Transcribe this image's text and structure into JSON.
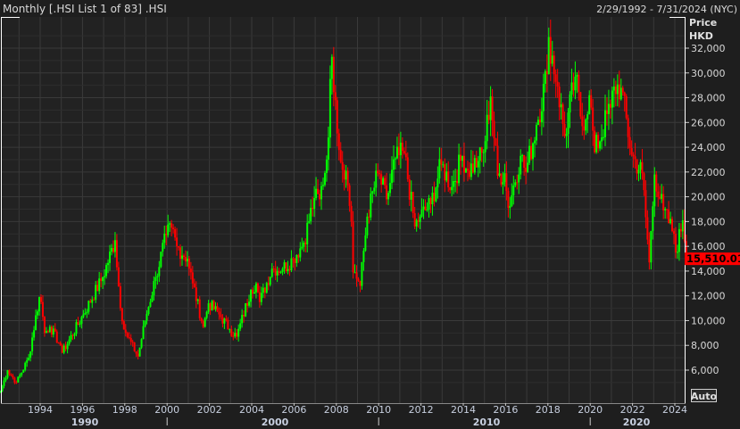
{
  "header": {
    "title": "Monthly [.HSI List 1 of 83] .HSI",
    "date_range": "2/29/1992 - 7/31/2024 (NYC)"
  },
  "axis": {
    "price_label": "Price",
    "currency_label": "HKD",
    "auto_button": "Auto",
    "last_price": "15,510.01"
  },
  "colors": {
    "up": "#00ff00",
    "down": "#ff0000",
    "background": "#1e1e1e",
    "plot": "#222222",
    "grid": "#3a3a3a",
    "last_price_tag": "#ff0000"
  },
  "chart_data": {
    "type": "candlestick",
    "interval": "monthly",
    "ylim": [
      4000,
      34000
    ],
    "y_ticks": [
      "6,000",
      "8,000",
      "10,000",
      "12,000",
      "14,000",
      "16,000",
      "18,000",
      "20,000",
      "22,000",
      "24,000",
      "26,000",
      "28,000",
      "30,000",
      "32,000"
    ],
    "y_tick_values": [
      6000,
      8000,
      10000,
      12000,
      14000,
      16000,
      18000,
      20000,
      22000,
      24000,
      26000,
      28000,
      30000,
      32000
    ],
    "x_ticks": [
      "1994",
      "1996",
      "1998",
      "2000",
      "2002",
      "2004",
      "2006",
      "2008",
      "2010",
      "2012",
      "2014",
      "2016",
      "2018",
      "2020",
      "2022",
      "2024"
    ],
    "x_decades": [
      "1990",
      "2000",
      "2010",
      "2020"
    ],
    "grid": true,
    "approx_closes": [
      [
        "1992-02",
        4300
      ],
      [
        "1992-06",
        6000
      ],
      [
        "1992-11",
        5000
      ],
      [
        "1993-06",
        7000
      ],
      [
        "1993-12",
        11900
      ],
      [
        "1994-01",
        11500
      ],
      [
        "1994-03",
        9000
      ],
      [
        "1994-06",
        9500
      ],
      [
        "1994-12",
        8000
      ],
      [
        "1995-01",
        7400
      ],
      [
        "1996-01",
        10500
      ],
      [
        "1996-12",
        13500
      ],
      [
        "1997-07",
        16500
      ],
      [
        "1997-10",
        11000
      ],
      [
        "1998-01",
        9000
      ],
      [
        "1998-08",
        7100
      ],
      [
        "1998-12",
        10000
      ],
      [
        "1999-06",
        13500
      ],
      [
        "1999-12",
        16900
      ],
      [
        "2000-03",
        17500
      ],
      [
        "2000-06",
        16000
      ],
      [
        "2000-12",
        15000
      ],
      [
        "2001-03",
        13000
      ],
      [
        "2001-09",
        9500
      ],
      [
        "2001-12",
        11400
      ],
      [
        "2002-06",
        10500
      ],
      [
        "2002-12",
        9300
      ],
      [
        "2003-04",
        8700
      ],
      [
        "2003-12",
        12500
      ],
      [
        "2004-03",
        13000
      ],
      [
        "2004-05",
        11500
      ],
      [
        "2004-12",
        14200
      ],
      [
        "2005-06",
        14200
      ],
      [
        "2005-12",
        15000
      ],
      [
        "2006-06",
        16300
      ],
      [
        "2006-12",
        19900
      ],
      [
        "2007-03",
        19800
      ],
      [
        "2007-07",
        23000
      ],
      [
        "2007-10",
        31300
      ],
      [
        "2007-12",
        27800
      ],
      [
        "2008-03",
        22800
      ],
      [
        "2008-06",
        22100
      ],
      [
        "2008-09",
        18000
      ],
      [
        "2008-10",
        13900
      ],
      [
        "2008-11",
        13900
      ],
      [
        "2009-02",
        12800
      ],
      [
        "2009-06",
        18400
      ],
      [
        "2009-12",
        21900
      ],
      [
        "2010-05",
        19800
      ],
      [
        "2010-10",
        23100
      ],
      [
        "2011-03",
        23500
      ],
      [
        "2011-09",
        17600
      ],
      [
        "2011-12",
        18400
      ],
      [
        "2012-06",
        19400
      ],
      [
        "2012-12",
        22600
      ],
      [
        "2013-06",
        20800
      ],
      [
        "2013-12",
        23300
      ],
      [
        "2014-03",
        22100
      ],
      [
        "2014-09",
        22900
      ],
      [
        "2014-12",
        23600
      ],
      [
        "2015-04",
        28100
      ],
      [
        "2015-08",
        21700
      ],
      [
        "2015-12",
        21900
      ],
      [
        "2016-02",
        19100
      ],
      [
        "2016-09",
        23300
      ],
      [
        "2016-12",
        22000
      ],
      [
        "2017-06",
        25800
      ],
      [
        "2017-12",
        29900
      ],
      [
        "2018-01",
        32900
      ],
      [
        "2018-06",
        28900
      ],
      [
        "2018-10",
        24900
      ],
      [
        "2019-04",
        29700
      ],
      [
        "2019-08",
        25700
      ],
      [
        "2019-12",
        28200
      ],
      [
        "2020-03",
        23600
      ],
      [
        "2020-12",
        27200
      ],
      [
        "2021-02",
        28900
      ],
      [
        "2021-06",
        28800
      ],
      [
        "2021-12",
        23400
      ],
      [
        "2022-06",
        21900
      ],
      [
        "2022-10",
        14700
      ],
      [
        "2023-01",
        21800
      ],
      [
        "2023-06",
        18900
      ],
      [
        "2023-12",
        17000
      ],
      [
        "2024-01",
        15500
      ],
      [
        "2024-05",
        18100
      ],
      [
        "2024-07",
        15510
      ]
    ]
  }
}
